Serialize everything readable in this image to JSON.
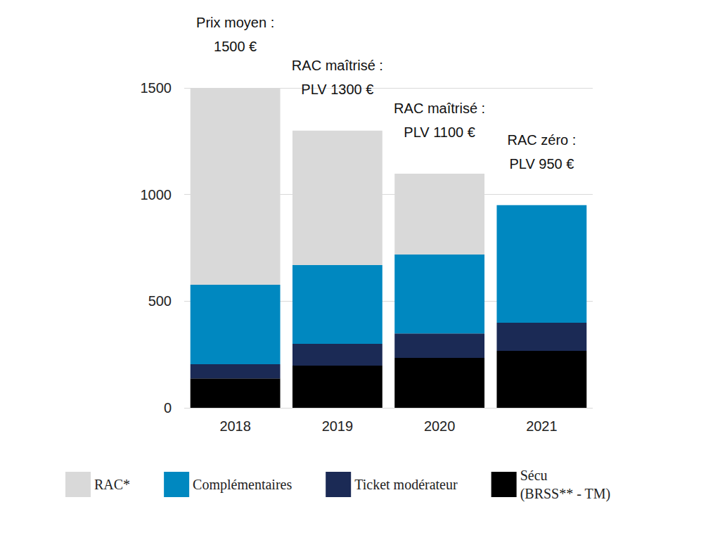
{
  "chart_data": {
    "type": "bar",
    "stacked": true,
    "grid": true,
    "legend": "bottom",
    "categories": [
      "2018",
      "2019",
      "2020",
      "2021"
    ],
    "series": [
      {
        "name": "Sécu\n(BRSS** - TM)",
        "color": "#000000",
        "values": [
          138,
          198,
          234,
          267
        ]
      },
      {
        "name": "Ticket modérateur",
        "color": "#1b2a55",
        "values": [
          66,
          102,
          115,
          132
        ]
      },
      {
        "name": "Complémentaires",
        "color": "#0088c0",
        "values": [
          373,
          369,
          370,
          551
        ]
      },
      {
        "name": "RAC*",
        "color": "#d9d9d9",
        "values": [
          923,
          631,
          379,
          0
        ]
      }
    ],
    "annotations": [
      {
        "category": "2018",
        "text": "Prix moyen :\n1500 €"
      },
      {
        "category": "2019",
        "text": "RAC maîtrisé :\nPLV 1300 €"
      },
      {
        "category": "2020",
        "text": "RAC maîtrisé :\nPLV 1100 €"
      },
      {
        "category": "2021",
        "text": "RAC zéro :\nPLV 950 €"
      }
    ],
    "ylim": [
      0,
      1500
    ],
    "yticks": [
      0,
      500,
      1000,
      1500
    ]
  }
}
